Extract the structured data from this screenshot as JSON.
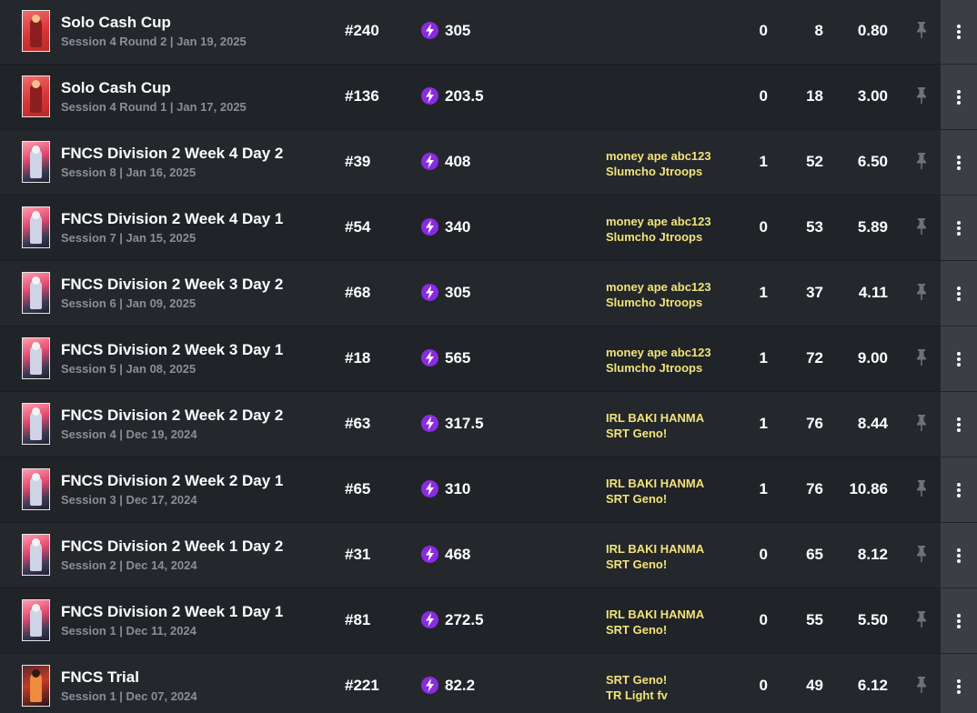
{
  "colors": {
    "row_odd": "#24272c",
    "row_even": "#202327",
    "text_primary": "#ffffff",
    "text_secondary": "#8a8f96",
    "team_text": "#f2e37a",
    "points_badge": "#8a2be2",
    "menu_button": "#3b3f45"
  },
  "icons": {
    "points": "lightning-bolt-icon",
    "pin": "pin-icon",
    "menu": "kebab-menu-icon"
  },
  "sessions": [
    {
      "thumb": "cash",
      "title": "Solo Cash Cup",
      "subtitle": "Session 4 Round 2 | Jan 19, 2025",
      "placement": "#240",
      "points": "305",
      "team": [],
      "wins": "0",
      "elims": "8",
      "avg": "0.80"
    },
    {
      "thumb": "cash",
      "title": "Solo Cash Cup",
      "subtitle": "Session 4 Round 1 | Jan 17, 2025",
      "placement": "#136",
      "points": "203.5",
      "team": [],
      "wins": "0",
      "elims": "18",
      "avg": "3.00"
    },
    {
      "thumb": "fncs",
      "title": "FNCS Division 2 Week 4 Day 2",
      "subtitle": "Session 8 | Jan 16, 2025",
      "placement": "#39",
      "points": "408",
      "team": [
        "money ape abc123",
        "Slumcho Jtroops"
      ],
      "wins": "1",
      "elims": "52",
      "avg": "6.50"
    },
    {
      "thumb": "fncs",
      "title": "FNCS Division 2 Week 4 Day 1",
      "subtitle": "Session 7 | Jan 15, 2025",
      "placement": "#54",
      "points": "340",
      "team": [
        "money ape abc123",
        "Slumcho Jtroops"
      ],
      "wins": "0",
      "elims": "53",
      "avg": "5.89"
    },
    {
      "thumb": "fncs",
      "title": "FNCS Division 2 Week 3 Day 2",
      "subtitle": "Session 6 | Jan 09, 2025",
      "placement": "#68",
      "points": "305",
      "team": [
        "money ape abc123",
        "Slumcho Jtroops"
      ],
      "wins": "1",
      "elims": "37",
      "avg": "4.11"
    },
    {
      "thumb": "fncs",
      "title": "FNCS Division 2 Week 3 Day 1",
      "subtitle": "Session 5 | Jan 08, 2025",
      "placement": "#18",
      "points": "565",
      "team": [
        "money ape abc123",
        "Slumcho Jtroops"
      ],
      "wins": "1",
      "elims": "72",
      "avg": "9.00"
    },
    {
      "thumb": "fncs",
      "title": "FNCS Division 2 Week 2 Day 2",
      "subtitle": "Session 4 | Dec 19, 2024",
      "placement": "#63",
      "points": "317.5",
      "team": [
        "IRL BAKI HANMA",
        "SRT Geno!"
      ],
      "wins": "1",
      "elims": "76",
      "avg": "8.44"
    },
    {
      "thumb": "fncs",
      "title": "FNCS Division 2 Week 2 Day 1",
      "subtitle": "Session 3 | Dec 17, 2024",
      "placement": "#65",
      "points": "310",
      "team": [
        "IRL BAKI HANMA",
        "SRT Geno!"
      ],
      "wins": "1",
      "elims": "76",
      "avg": "10.86"
    },
    {
      "thumb": "fncs",
      "title": "FNCS Division 2 Week 1 Day 2",
      "subtitle": "Session 2 | Dec 14, 2024",
      "placement": "#31",
      "points": "468",
      "team": [
        "IRL BAKI HANMA",
        "SRT Geno!"
      ],
      "wins": "0",
      "elims": "65",
      "avg": "8.12"
    },
    {
      "thumb": "fncs",
      "title": "FNCS Division 2 Week 1 Day 1",
      "subtitle": "Session 1 | Dec 11, 2024",
      "placement": "#81",
      "points": "272.5",
      "team": [
        "IRL BAKI HANMA",
        "SRT Geno!"
      ],
      "wins": "0",
      "elims": "55",
      "avg": "5.50"
    },
    {
      "thumb": "trial",
      "title": "FNCS Trial",
      "subtitle": "Session 1 | Dec 07, 2024",
      "placement": "#221",
      "points": "82.2",
      "team": [
        "SRT Geno!",
        "TR Light fv"
      ],
      "wins": "0",
      "elims": "49",
      "avg": "6.12"
    }
  ]
}
